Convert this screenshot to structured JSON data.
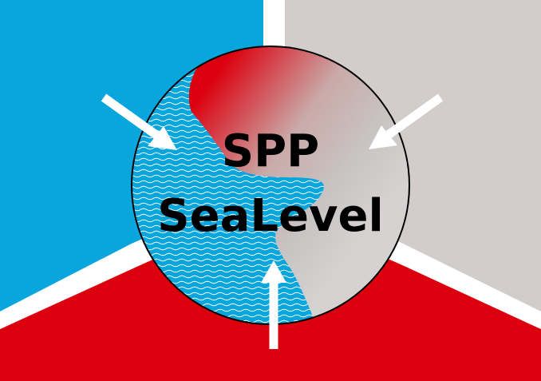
{
  "logo": {
    "line1": "SPP",
    "line2": "SeaLevel"
  },
  "colors": {
    "ocean": "#09a6dd",
    "land": "#d2ccca",
    "red": "#dc000f",
    "divider": "#ffffff",
    "text": "#000000"
  }
}
